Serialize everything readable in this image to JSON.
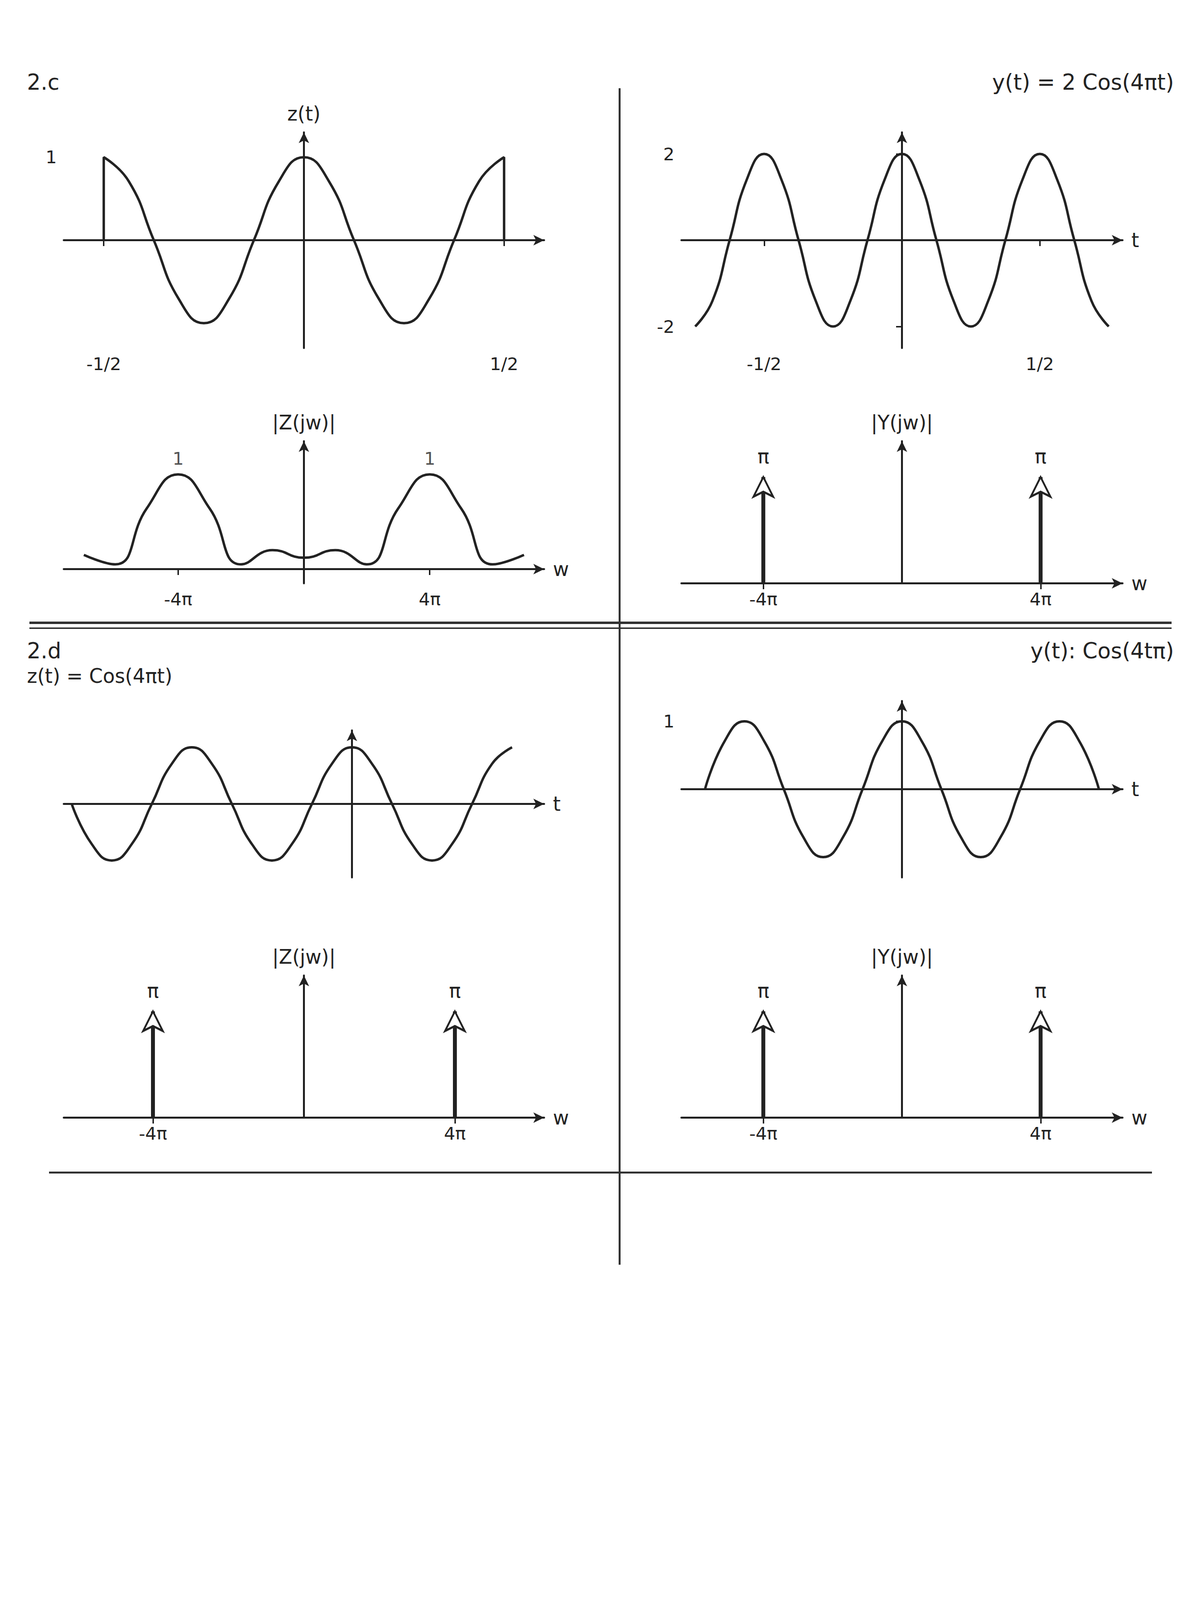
{
  "chart_data": [
    {
      "type": "line",
      "title": "2.c",
      "y_label": "z(t)",
      "color": "#222222",
      "x": [
        -0.5,
        -0.5,
        -0.4375,
        -0.375,
        -0.3125,
        -0.25,
        -0.1875,
        -0.125,
        -0.0625,
        0,
        0.0625,
        0.125,
        0.1875,
        0.25,
        0.3125,
        0.375,
        0.4375,
        0.5,
        0.5
      ],
      "values": [
        0,
        1,
        0.71,
        0,
        -0.71,
        -1,
        -0.71,
        0,
        0.71,
        1,
        0.71,
        0,
        -0.71,
        -1,
        -0.71,
        0,
        0.71,
        1,
        0
      ],
      "xlim": [
        -0.6,
        0.6
      ],
      "xticks": [
        {
          "value": -0.5,
          "label": "-1/2"
        },
        {
          "value": 0.5,
          "label": "1/2"
        }
      ],
      "ylim": [
        -1.3,
        1.3
      ],
      "yticks": [
        1
      ],
      "tick_labels": true
    },
    {
      "type": "line",
      "y_label": "|Z(jw)|",
      "x_label": "w",
      "color": "#222222",
      "x": [
        -21.99,
        -18.85,
        -15.71,
        -12.57,
        -9.42,
        -6.28,
        -3.14,
        0,
        3.14,
        6.28,
        9.42,
        12.57,
        15.71,
        18.85,
        21.99
      ],
      "values": [
        0.15,
        0.05,
        0.64,
        1,
        0.64,
        0.05,
        0.2,
        0.12,
        0.2,
        0.05,
        0.64,
        1,
        0.64,
        0.05,
        0.15
      ],
      "xlim": [
        -24,
        24
      ],
      "xticks": [
        {
          "value": -12.57,
          "label": "-4π"
        },
        {
          "value": 12.57,
          "label": "4π"
        }
      ],
      "ylim": [
        -0.15,
        1.35
      ],
      "tick_labels": "x",
      "annotations": [
        {
          "text": "1",
          "x": -12.57,
          "y": 1
        },
        {
          "text": "1",
          "x": 12.57,
          "y": 1
        }
      ]
    },
    {
      "type": "line",
      "title": "y(t) = 2 Cos(4πt)",
      "x_label": "t",
      "color": "#222222",
      "x": [
        -0.75,
        -0.6875,
        -0.625,
        -0.5625,
        -0.5,
        -0.4375,
        -0.375,
        -0.3125,
        -0.25,
        -0.1875,
        -0.125,
        -0.0625,
        0,
        0.0625,
        0.125,
        0.1875,
        0.25,
        0.3125,
        0.375,
        0.4375,
        0.5,
        0.5625,
        0.625,
        0.6875,
        0.75
      ],
      "values": [
        -2,
        -1.41,
        0,
        1.41,
        2,
        1.41,
        0,
        -1.41,
        -2,
        -1.41,
        0,
        1.41,
        2,
        1.41,
        0,
        -1.41,
        -2,
        -1.41,
        0,
        1.41,
        2,
        1.41,
        0,
        -1.41,
        -2
      ],
      "xlim": [
        -0.8,
        0.8
      ],
      "xticks": [
        {
          "value": -0.5,
          "label": "-1/2"
        },
        {
          "value": 0.5,
          "label": "1/2"
        }
      ],
      "ylim": [
        -2.5,
        2.5
      ],
      "yticks": [
        -2,
        2
      ],
      "tick_labels": true
    },
    {
      "type": "impulse",
      "y_label": "|Y(jw)|",
      "x_label": "w",
      "color": "#222222",
      "x": [
        -12.57,
        12.57
      ],
      "values": [
        3.14,
        3.14
      ],
      "data_labels": true,
      "value_labels": [
        "π",
        "π"
      ],
      "xlim": [
        -20,
        20
      ],
      "xticks": [
        {
          "value": -12.57,
          "label": "-4π"
        },
        {
          "value": 12.57,
          "label": "4π"
        }
      ],
      "ylim": [
        0,
        4.2
      ],
      "tick_labels": "x"
    },
    {
      "type": "line",
      "title": "2.d",
      "subtitle": "z(t) = Cos(4πt)",
      "x_label": "t",
      "color": "#222222",
      "x": [
        -0.875,
        -0.8125,
        -0.75,
        -0.6875,
        -0.625,
        -0.5625,
        -0.5,
        -0.4375,
        -0.375,
        -0.3125,
        -0.25,
        -0.1875,
        -0.125,
        -0.0625,
        0,
        0.0625,
        0.125,
        0.1875,
        0.25,
        0.3125,
        0.375,
        0.4375,
        0.5
      ],
      "values": [
        0,
        -0.71,
        -1,
        -0.71,
        0,
        0.71,
        1,
        0.71,
        0,
        -0.71,
        -1,
        -0.71,
        0,
        0.71,
        1,
        0.71,
        0,
        -0.71,
        -1,
        -0.71,
        0,
        0.71,
        1
      ],
      "xlim": [
        -0.9,
        0.6
      ],
      "ylim": [
        -1.3,
        1.3
      ],
      "tick_labels": false
    },
    {
      "type": "impulse",
      "y_label": "|Z(jw)|",
      "x_label": "w",
      "color": "#222222",
      "x": [
        -12.57,
        12.57
      ],
      "values": [
        3.14,
        3.14
      ],
      "data_labels": true,
      "value_labels": [
        "π",
        "π"
      ],
      "xlim": [
        -20,
        20
      ],
      "xticks": [
        {
          "value": -12.57,
          "label": "-4π"
        },
        {
          "value": 12.57,
          "label": "4π"
        }
      ],
      "ylim": [
        0,
        4.2
      ],
      "tick_labels": "x"
    },
    {
      "type": "line",
      "title": "y(t): Cos(4tπ)",
      "x_label": "t",
      "color": "#222222",
      "x": [
        -0.625,
        -0.5625,
        -0.5,
        -0.4375,
        -0.375,
        -0.3125,
        -0.25,
        -0.1875,
        -0.125,
        -0.0625,
        0,
        0.0625,
        0.125,
        0.1875,
        0.25,
        0.3125,
        0.375,
        0.4375,
        0.5,
        0.5625,
        0.625
      ],
      "values": [
        0,
        0.71,
        1,
        0.71,
        0,
        -0.71,
        -1,
        -0.71,
        0,
        0.71,
        1,
        0.71,
        0,
        -0.71,
        -1,
        -0.71,
        0,
        0.71,
        1,
        0.71,
        0
      ],
      "xlim": [
        -0.7,
        0.7
      ],
      "ylim": [
        -1.3,
        1.3
      ],
      "yticks": [
        1
      ],
      "tick_labels": "y"
    },
    {
      "type": "impulse",
      "y_label": "|Y(jw)|",
      "x_label": "w",
      "color": "#222222",
      "x": [
        -12.57,
        12.57
      ],
      "values": [
        3.14,
        3.14
      ],
      "data_labels": true,
      "value_labels": [
        "π",
        "π"
      ],
      "xlim": [
        -20,
        20
      ],
      "xticks": [
        {
          "value": -12.57,
          "label": "-4π"
        },
        {
          "value": 12.57,
          "label": "4π"
        }
      ],
      "ylim": [
        0,
        4.2
      ],
      "tick_labels": "x"
    }
  ]
}
